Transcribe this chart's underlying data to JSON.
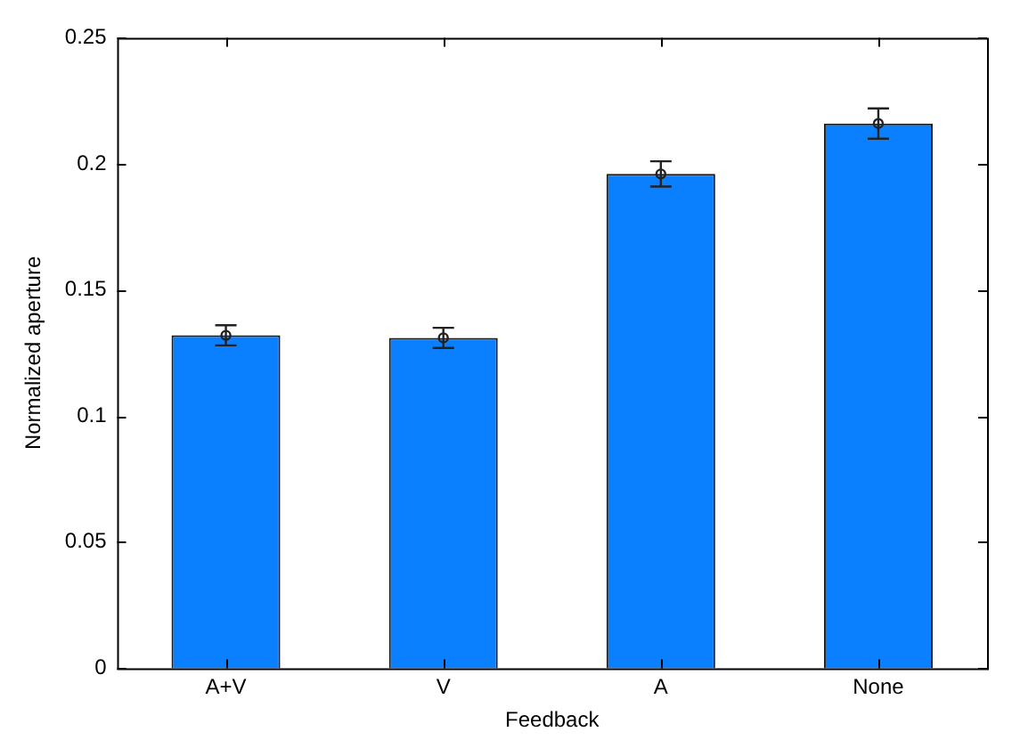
{
  "chart_data": {
    "type": "bar",
    "xlabel": "Feedback",
    "ylabel": "Normalized aperture",
    "categories": [
      "A+V",
      "V",
      "A",
      "None"
    ],
    "series": [
      {
        "color": "#0a80ff",
        "values": [
          0.132,
          0.131,
          0.196,
          0.216
        ]
      },
      {
        "type": "scatter",
        "color": "#222222",
        "x": [
          "A+V",
          "V",
          "A",
          "None"
        ],
        "values": [
          0.132,
          0.131,
          0.196,
          0.216
        ],
        "errors": [
          0.004,
          0.004,
          0.005,
          0.006
        ]
      }
    ],
    "ylim": [
      0,
      0.25
    ],
    "yticks": [
      0,
      0.05,
      0.1,
      0.15,
      0.2,
      0.25
    ],
    "grid": false,
    "legend": false,
    "marker": "circle"
  }
}
